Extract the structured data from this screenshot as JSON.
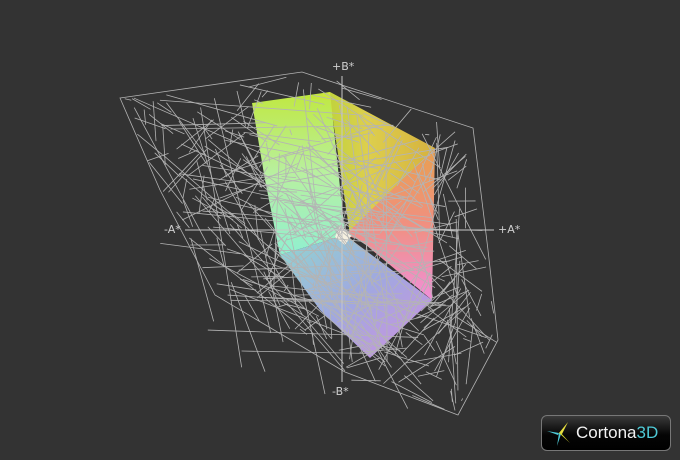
{
  "viewer": {
    "axes": {
      "plus_b": "+B*",
      "minus_b": "-B*",
      "plus_a": "+A*",
      "minus_a": "-A*"
    },
    "logo": {
      "name": "Cortona",
      "suffix": "3D"
    },
    "colors": {
      "background": "#333333",
      "wireframe": "#b4b4b4",
      "logo_accent": "#4ec9d6"
    }
  }
}
